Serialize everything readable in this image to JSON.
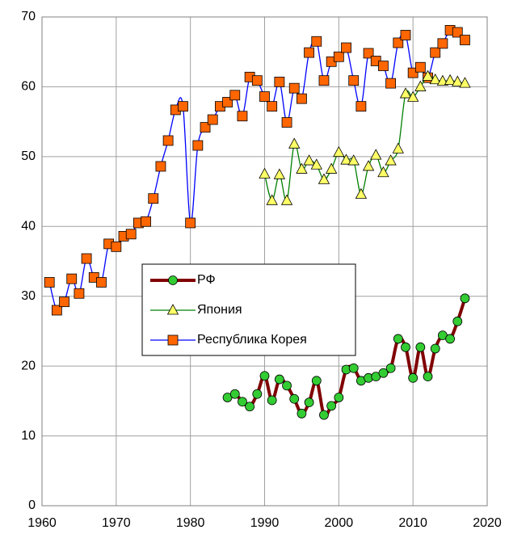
{
  "chart_data": {
    "type": "line",
    "xlim": [
      1960,
      2020
    ],
    "xticks": [
      1960,
      1970,
      1980,
      1990,
      2000,
      2010,
      2020
    ],
    "ylim": [
      0,
      70
    ],
    "yticks": [
      0,
      10,
      20,
      30,
      40,
      50,
      60,
      70
    ],
    "grid": true,
    "legend": "center",
    "series": [
      {
        "name": "Республика Корея",
        "color": "#0000ff",
        "marker_color": "#ff6600",
        "marker": "square",
        "x": [
          1961,
          1962,
          1963,
          1964,
          1965,
          1966,
          1967,
          1968,
          1969,
          1970,
          1971,
          1972,
          1973,
          1974,
          1975,
          1976,
          1977,
          1978,
          1979,
          1980,
          1981,
          1982,
          1983,
          1984,
          1985,
          1986,
          1987,
          1988,
          1989,
          1990,
          1991,
          1992,
          1993,
          1994,
          1995,
          1996,
          1997,
          1998,
          1999,
          2000,
          2001,
          2002,
          2003,
          2004,
          2005,
          2006,
          2007,
          2008,
          2009,
          2010,
          2011,
          2012,
          2013,
          2014,
          2015,
          2016,
          2017
        ],
        "values": [
          32,
          28,
          29.2,
          32.5,
          30.4,
          35.4,
          32.7,
          32,
          37.5,
          37.1,
          38.6,
          38.9,
          40.5,
          40.7,
          44,
          48.6,
          52.3,
          56.7,
          57.2,
          40.5,
          51.6,
          54.2,
          55.3,
          57.2,
          57.8,
          58.8,
          55.8,
          61.4,
          60.9,
          58.6,
          57.2,
          60.7,
          54.9,
          59.8,
          58.3,
          64.9,
          66.5,
          60.9,
          63.6,
          64.3,
          65.6,
          60.9,
          57.2,
          64.8,
          63.7,
          63,
          60.5,
          66.3,
          67.4,
          62,
          62.8,
          61.3,
          64.9,
          66.2,
          68.1,
          67.8,
          66.7
        ]
      },
      {
        "name": "Япония",
        "color": "#008000",
        "marker_color": "#ffff66",
        "marker": "triangle",
        "x": [
          1990,
          1991,
          1992,
          1993,
          1994,
          1995,
          1996,
          1997,
          1998,
          1999,
          2000,
          2001,
          2002,
          2003,
          2004,
          2005,
          2006,
          2007,
          2008,
          2009,
          2010,
          2011,
          2012,
          2013,
          2014,
          2015,
          2016,
          2017
        ],
        "values": [
          47.5,
          43.7,
          47.4,
          43.7,
          51.8,
          48.2,
          49.4,
          48.8,
          46.7,
          48.2,
          50.6,
          49.5,
          49.4,
          44.6,
          48.6,
          50.2,
          47.7,
          49.4,
          51.1,
          59,
          58.5,
          60,
          61.5,
          61,
          60.8,
          60.9,
          60.7,
          60.5
        ]
      },
      {
        "name": "РФ",
        "color": "#800000",
        "marker_color": "#33cc33",
        "marker": "circle",
        "x": [
          1985,
          1986,
          1987,
          1988,
          1989,
          1990,
          1991,
          1992,
          1993,
          1994,
          1995,
          1996,
          1997,
          1998,
          1999,
          2000,
          2001,
          2002,
          2003,
          2004,
          2005,
          2006,
          2007,
          2008,
          2009,
          2010,
          2011,
          2012,
          2013,
          2014,
          2015,
          2016,
          2017
        ],
        "values": [
          15.5,
          16,
          14.9,
          14.2,
          16,
          18.6,
          15.1,
          18.1,
          17.2,
          15.3,
          13.2,
          14.8,
          17.9,
          13,
          14.3,
          15.5,
          19.5,
          19.7,
          17.9,
          18.3,
          18.5,
          19,
          19.7,
          23.9,
          22.7,
          18.3,
          22.7,
          18.5,
          22.5,
          24.4,
          23.9,
          26.4,
          29.7
        ]
      }
    ]
  }
}
